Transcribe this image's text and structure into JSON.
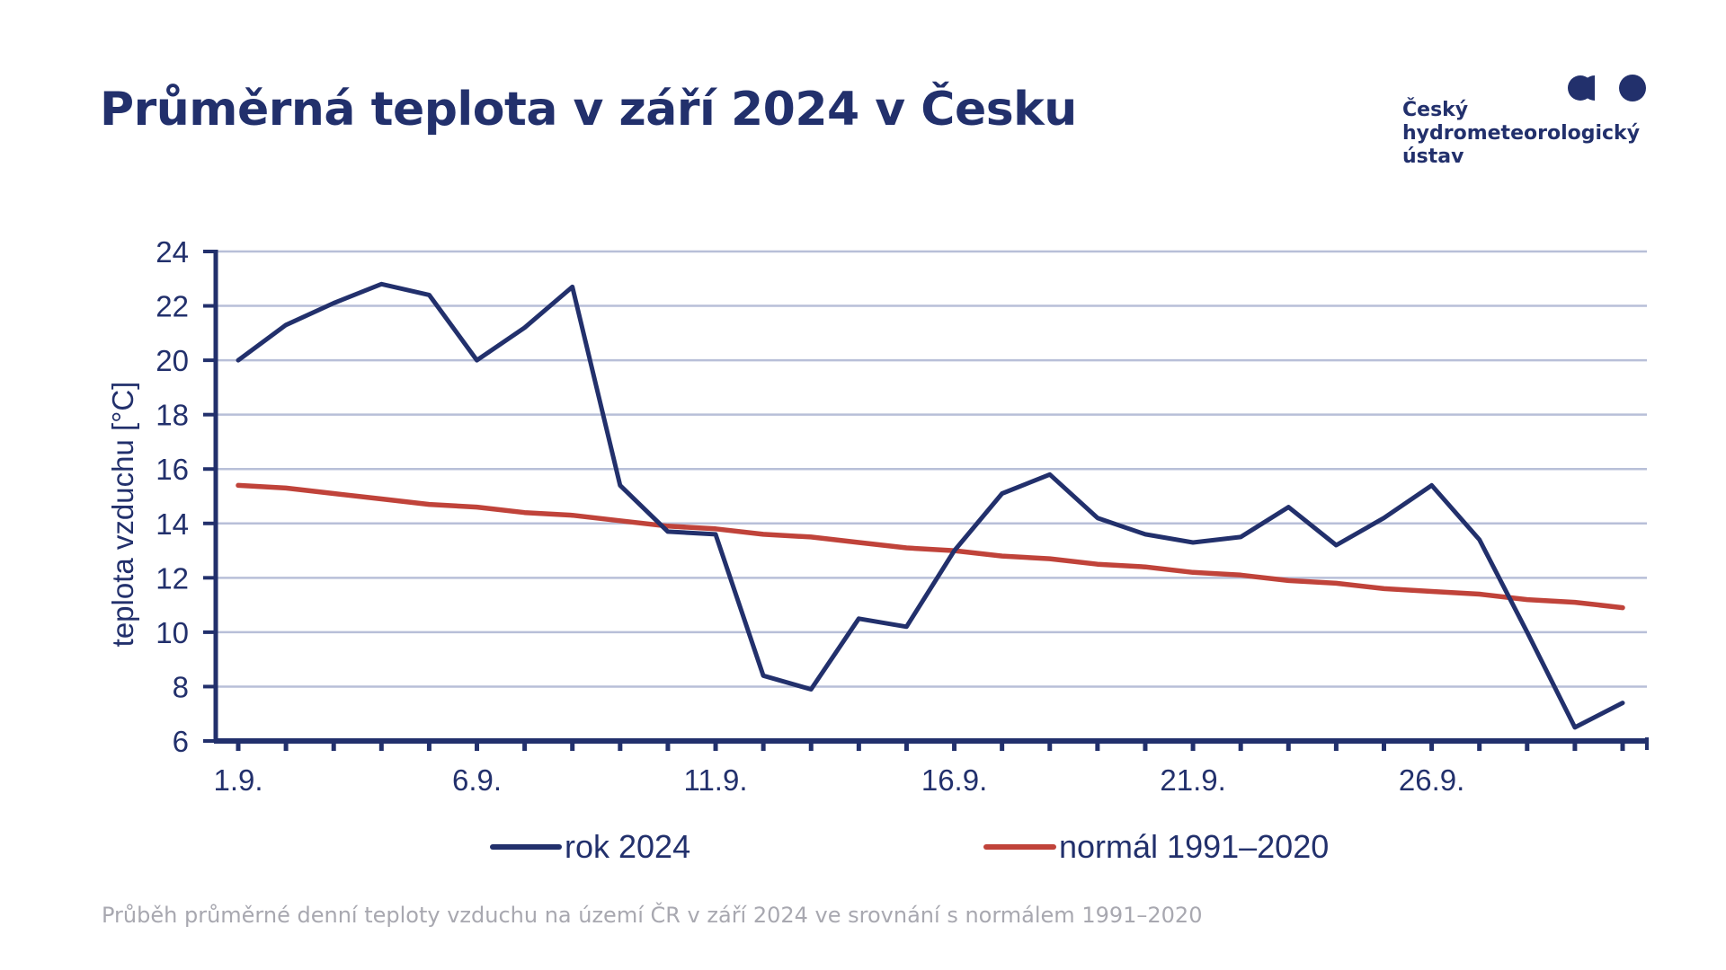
{
  "header": {
    "title": "Průměrná teplota v září 2024 v Česku"
  },
  "logo": {
    "line1": "Český",
    "line2": "hydrometeorologický",
    "line3": "ústav"
  },
  "caption": "Průběh průměrné denní teploty vzduchu na území ČR v září 2024 ve srovnání s normálem 1991–2020",
  "colors": {
    "brand": "#22306c",
    "series_2024": "#22306c",
    "series_normal": "#c0433a",
    "grid": "#b8bfd8",
    "caption": "#a8a8b0"
  },
  "chart_data": {
    "type": "line",
    "title": "",
    "xlabel": "",
    "ylabel": "teplota vzduchu [°C]",
    "ylim": [
      6,
      24
    ],
    "yticks": [
      6,
      8,
      10,
      12,
      14,
      16,
      18,
      20,
      22,
      24
    ],
    "xlim": [
      1,
      30
    ],
    "x": [
      1,
      2,
      3,
      4,
      5,
      6,
      7,
      8,
      9,
      10,
      11,
      12,
      13,
      14,
      15,
      16,
      17,
      18,
      19,
      20,
      21,
      22,
      23,
      24,
      25,
      26,
      27,
      28,
      29,
      30
    ],
    "xtick_labels": [
      "1.9.",
      "6.9.",
      "11.9.",
      "16.9.",
      "21.9.",
      "26.9."
    ],
    "xtick_label_days": [
      1,
      6,
      11,
      16,
      21,
      26
    ],
    "grid": true,
    "legend_position": "bottom",
    "series": [
      {
        "name": "rok 2024",
        "values": [
          20.0,
          21.3,
          22.1,
          22.8,
          22.4,
          20.0,
          21.2,
          22.7,
          15.4,
          13.7,
          13.6,
          8.4,
          7.9,
          10.5,
          10.2,
          13.0,
          15.1,
          15.8,
          14.2,
          13.6,
          13.3,
          13.5,
          14.6,
          13.2,
          14.2,
          15.4,
          13.4,
          10.0,
          6.5,
          7.4
        ]
      },
      {
        "name": "normál 1991–2020",
        "values": [
          15.4,
          15.3,
          15.1,
          14.9,
          14.7,
          14.6,
          14.4,
          14.3,
          14.1,
          13.9,
          13.8,
          13.6,
          13.5,
          13.3,
          13.1,
          13.0,
          12.8,
          12.7,
          12.5,
          12.4,
          12.2,
          12.1,
          11.9,
          11.8,
          11.6,
          11.5,
          11.4,
          11.2,
          11.1,
          10.9
        ]
      }
    ]
  }
}
